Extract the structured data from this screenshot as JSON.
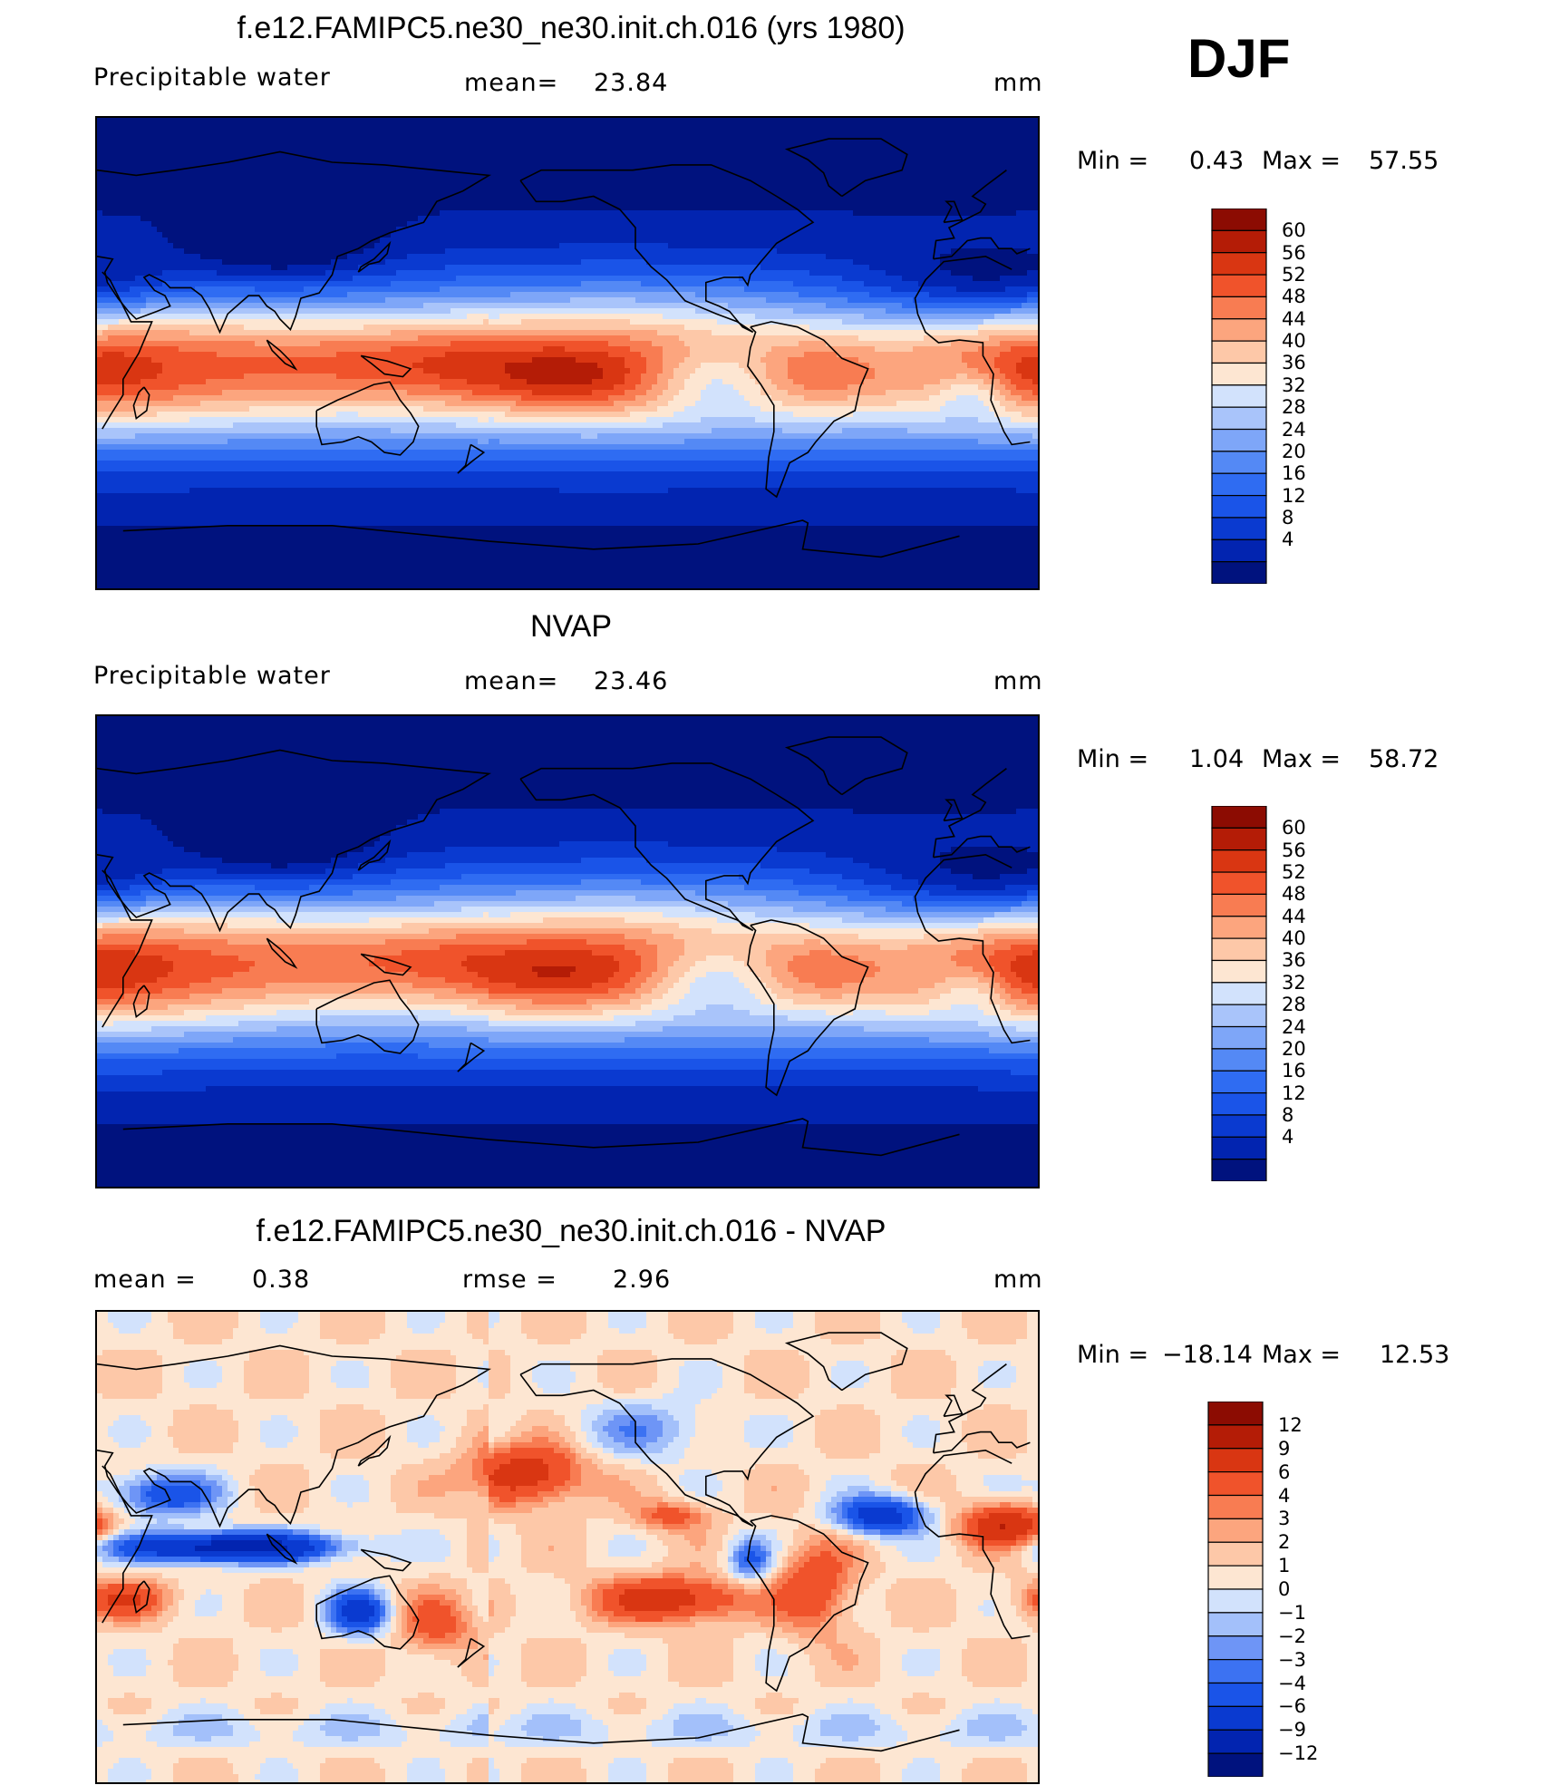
{
  "season": "DJF",
  "colors": {
    "abs_levels": [
      "#00127e",
      "#0224b0",
      "#0a3ad0",
      "#1a54e8",
      "#2f6cf2",
      "#5489f5",
      "#7ea6f8",
      "#a9c4fa",
      "#d2e2fc",
      "#fde6d2",
      "#fdc8a8",
      "#fca57e",
      "#f87c52",
      "#f0532b",
      "#d93612",
      "#b41c06",
      "#8c0c02"
    ],
    "diff_levels": [
      "#00127e",
      "#0224b0",
      "#0a3ad0",
      "#1a54e8",
      "#3c72f2",
      "#6e95f6",
      "#a3c0fa",
      "#d2e2fc",
      "#fde6d2",
      "#fdc8a8",
      "#fca57e",
      "#f87c52",
      "#f0532b",
      "#d93612",
      "#b41c06",
      "#8c0c02"
    ]
  },
  "panels": [
    {
      "title": "f.e12.FAMIPC5.ne30_ne30.init.ch.016 (yrs 1980)",
      "left_label": "Precipitable  water",
      "center_label": "mean=",
      "center_value": "23.84",
      "units": "mm",
      "min_label": "Min  =",
      "min_value": "0.43",
      "max_label": "Max  =",
      "max_value": "57.55",
      "colorbar_ticks": [
        "60",
        "56",
        "52",
        "48",
        "44",
        "40",
        "36",
        "32",
        "28",
        "24",
        "20",
        "16",
        "12",
        "8",
        "4"
      ]
    },
    {
      "title": "NVAP",
      "left_label": "Precipitable  water",
      "center_label": "mean=",
      "center_value": "23.46",
      "units": "mm",
      "min_label": "Min  =",
      "min_value": "1.04",
      "max_label": "Max  =",
      "max_value": "58.72",
      "colorbar_ticks": [
        "60",
        "56",
        "52",
        "48",
        "44",
        "40",
        "36",
        "32",
        "28",
        "24",
        "20",
        "16",
        "12",
        "8",
        "4"
      ]
    },
    {
      "title": "f.e12.FAMIPC5.ne30_ne30.init.ch.016 - NVAP",
      "left_label": "mean  =",
      "left_value": "0.38",
      "center_label": "rmse  =",
      "center_value": "2.96",
      "units": "mm",
      "min_label": "Min  =",
      "min_value": "−18.14",
      "max_label": "Max  =",
      "max_value": "12.53",
      "colorbar_ticks": [
        "12",
        "9",
        "6",
        "4",
        "3",
        "2",
        "1",
        "0",
        "−1",
        "−2",
        "−3",
        "−4",
        "−6",
        "−9",
        "−12"
      ]
    }
  ],
  "chart_data": [
    {
      "type": "heatmap",
      "title": "f.e12.FAMIPC5.ne30_ne30.init.ch.016 (yrs 1980)",
      "variable": "Precipitable  water",
      "units": "mm",
      "mean": 23.84,
      "min": 0.43,
      "max": 57.55,
      "levels": [
        4,
        8,
        12,
        16,
        20,
        24,
        28,
        32,
        36,
        40,
        44,
        48,
        52,
        56,
        60
      ]
    },
    {
      "type": "heatmap",
      "title": "NVAP",
      "variable": "Precipitable  water",
      "units": "mm",
      "mean": 23.46,
      "min": 1.04,
      "max": 58.72,
      "levels": [
        4,
        8,
        12,
        16,
        20,
        24,
        28,
        32,
        36,
        40,
        44,
        48,
        52,
        56,
        60
      ]
    },
    {
      "type": "heatmap",
      "title": "f.e12.FAMIPC5.ne30_ne30.init.ch.016 - NVAP",
      "units": "mm",
      "mean": 0.38,
      "rmse": 2.96,
      "min": -18.14,
      "max": 12.53,
      "levels": [
        -12,
        -9,
        -6,
        -4,
        -3,
        -2,
        -1,
        0,
        1,
        2,
        3,
        4,
        6,
        9,
        12
      ]
    }
  ]
}
